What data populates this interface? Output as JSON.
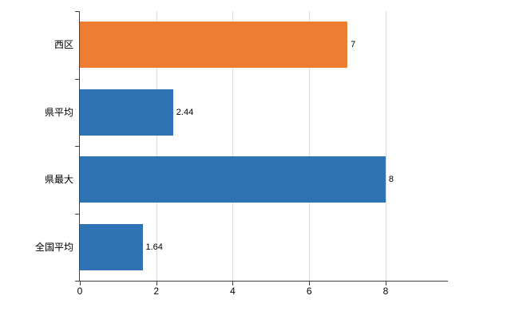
{
  "chart_data": {
    "type": "bar",
    "orientation": "horizontal",
    "title": "",
    "xlabel": "",
    "ylabel": "",
    "categories": [
      "西区",
      "県平均",
      "県最大",
      "全国平均"
    ],
    "values": [
      7,
      2.44,
      8,
      1.64
    ],
    "value_labels": [
      "7",
      "2.44",
      "8",
      "1.64"
    ],
    "bar_colors": [
      "#ED7D31",
      "#2E74B5",
      "#2E74B5",
      "#2E74B5"
    ],
    "xlim": [
      0,
      9.61
    ],
    "x_ticks": [
      0,
      2,
      4,
      6,
      8
    ],
    "x_tick_labels": [
      "0",
      "2",
      "4",
      "6",
      "8"
    ],
    "grid": true,
    "legend": "none",
    "colors": {
      "axis": "#404040",
      "gridline": "#d9d9d9",
      "background": "#ffffff",
      "highlight_bar": "#ED7D31",
      "default_bar": "#2E74B5"
    }
  }
}
